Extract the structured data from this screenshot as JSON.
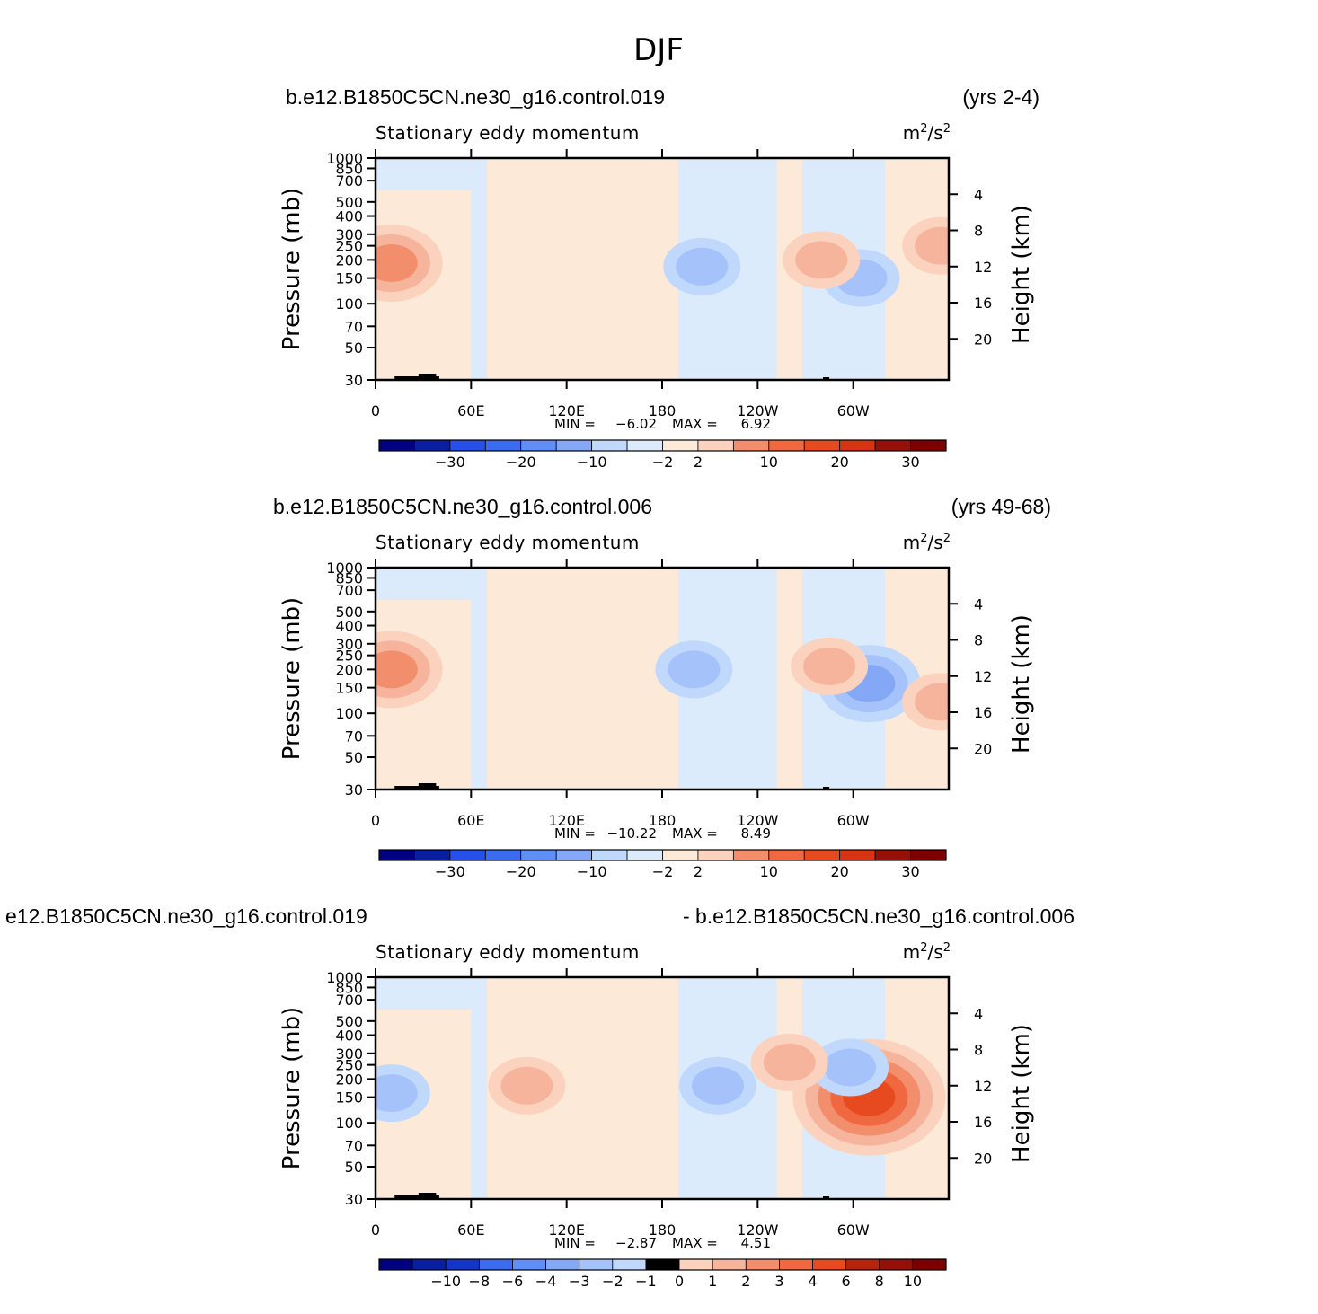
{
  "figure_title": "DJF",
  "chart_data": [
    {
      "type": "heatmap",
      "case_name": "b.e12.B1850C5CN.ne30_g16.control.019",
      "years": "(yrs 2-4)",
      "left_string": "Stationary eddy momentum",
      "units": {
        "base": "m",
        "exp1": "2",
        "mid": "/s",
        "exp2": "2"
      },
      "ylabel": "Pressure (mb)",
      "y2label": "Height (km)",
      "x_ticks": [
        "0",
        "60E",
        "120E",
        "180",
        "120W",
        "60W"
      ],
      "y_ticks": [
        "30",
        "50",
        "70",
        "100",
        "150",
        "200",
        "250",
        "300",
        "400",
        "500",
        "700",
        "850",
        "1000"
      ],
      "y2_ticks": [
        "20",
        "16",
        "12",
        "8",
        "4"
      ],
      "min_label": "MIN =",
      "min_value": "−6.02",
      "max_label": "MAX =",
      "max_value": "6.92",
      "x_range": [
        0,
        360
      ],
      "y_range_mb": [
        1000,
        30
      ],
      "colorbar_levels": [
        -35,
        -30,
        -25,
        -20,
        -15,
        -10,
        -5,
        -2,
        2,
        5,
        10,
        15,
        20,
        25,
        30
      ],
      "colorbar_labels": [
        "−30",
        "−20",
        "−10",
        "−2",
        "2",
        "10",
        "20",
        "30"
      ],
      "features": [
        {
          "sign": "negative",
          "lon": 205,
          "p_mb": 180,
          "level": 2
        },
        {
          "sign": "negative",
          "lon": 305,
          "p_mb": 150,
          "level": 2
        },
        {
          "sign": "positive",
          "lon": 10,
          "p_mb": 190,
          "level": 3
        },
        {
          "sign": "positive",
          "lon": 355,
          "p_mb": 250,
          "level": 2
        },
        {
          "sign": "positive",
          "lon": 280,
          "p_mb": 200,
          "level": 2
        }
      ]
    },
    {
      "type": "heatmap",
      "case_name": "b.e12.B1850C5CN.ne30_g16.control.006",
      "years": "(yrs 49-68)",
      "left_string": "Stationary eddy momentum",
      "units": {
        "base": "m",
        "exp1": "2",
        "mid": "/s",
        "exp2": "2"
      },
      "ylabel": "Pressure (mb)",
      "y2label": "Height (km)",
      "x_ticks": [
        "0",
        "60E",
        "120E",
        "180",
        "120W",
        "60W"
      ],
      "y_ticks": [
        "30",
        "50",
        "70",
        "100",
        "150",
        "200",
        "250",
        "300",
        "400",
        "500",
        "700",
        "850",
        "1000"
      ],
      "y2_ticks": [
        "20",
        "16",
        "12",
        "8",
        "4"
      ],
      "min_label": "MIN =",
      "min_value": "−10.22",
      "max_label": "MAX =",
      "max_value": "8.49",
      "x_range": [
        0,
        360
      ],
      "y_range_mb": [
        1000,
        30
      ],
      "colorbar_levels": [
        -35,
        -30,
        -25,
        -20,
        -15,
        -10,
        -5,
        -2,
        2,
        5,
        10,
        15,
        20,
        25,
        30
      ],
      "colorbar_labels": [
        "−30",
        "−20",
        "−10",
        "−2",
        "2",
        "10",
        "20",
        "30"
      ],
      "features": [
        {
          "sign": "negative",
          "lon": 200,
          "p_mb": 200,
          "level": 2
        },
        {
          "sign": "negative",
          "lon": 310,
          "p_mb": 160,
          "level": 3
        },
        {
          "sign": "positive",
          "lon": 10,
          "p_mb": 200,
          "level": 3
        },
        {
          "sign": "positive",
          "lon": 355,
          "p_mb": 120,
          "level": 2
        },
        {
          "sign": "positive",
          "lon": 285,
          "p_mb": 210,
          "level": 2
        }
      ]
    },
    {
      "type": "heatmap",
      "case_name": "e12.B1850C5CN.ne30_g16.control.019",
      "years": "- b.e12.B1850C5CN.ne30_g16.control.006",
      "left_string": "Stationary eddy momentum",
      "units": {
        "base": "m",
        "exp1": "2",
        "mid": "/s",
        "exp2": "2"
      },
      "ylabel": "Pressure (mb)",
      "y2label": "Height (km)",
      "x_ticks": [
        "0",
        "60E",
        "120E",
        "180",
        "120W",
        "60W"
      ],
      "y_ticks": [
        "30",
        "50",
        "70",
        "100",
        "150",
        "200",
        "250",
        "300",
        "400",
        "500",
        "700",
        "850",
        "1000"
      ],
      "y2_ticks": [
        "20",
        "16",
        "12",
        "8",
        "4"
      ],
      "min_label": "MIN =",
      "min_value": "−2.87",
      "max_label": "MAX =",
      "max_value": "4.51",
      "x_range": [
        0,
        360
      ],
      "y_range_mb": [
        1000,
        30
      ],
      "colorbar_levels": [
        -12,
        -10,
        -8,
        -6,
        -4,
        -3,
        -2,
        -1,
        0,
        1,
        2,
        3,
        4,
        6,
        8,
        10
      ],
      "colorbar_labels": [
        "−10",
        "−8",
        "−6",
        "−4",
        "−3",
        "−2",
        "−1",
        "0",
        "1",
        "2",
        "3",
        "4",
        "6",
        "8",
        "10"
      ],
      "features": [
        {
          "sign": "positive",
          "lon": 310,
          "p_mb": 150,
          "level": 5
        },
        {
          "sign": "negative",
          "lon": 215,
          "p_mb": 180,
          "level": 2
        },
        {
          "sign": "negative",
          "lon": 10,
          "p_mb": 160,
          "level": 2
        },
        {
          "sign": "negative",
          "lon": 298,
          "p_mb": 240,
          "level": 2
        },
        {
          "sign": "positive",
          "lon": 95,
          "p_mb": 180,
          "level": 2
        },
        {
          "sign": "positive",
          "lon": 260,
          "p_mb": 260,
          "level": 2
        }
      ]
    }
  ],
  "palette": {
    "negative": [
      "#dcebfb",
      "#c0d8fb",
      "#a6c2fa",
      "#84a8f6",
      "#5f8ef6",
      "#3b6cf0",
      "#2650e8",
      "#1436c8",
      "#0a1fa0",
      "#000080"
    ],
    "positive": [
      "#fde9d8",
      "#fbd2bd",
      "#f7b49c",
      "#f28e6c",
      "#f06840",
      "#e84a20",
      "#d63412",
      "#b8240a",
      "#951108",
      "#7d0000"
    ]
  }
}
